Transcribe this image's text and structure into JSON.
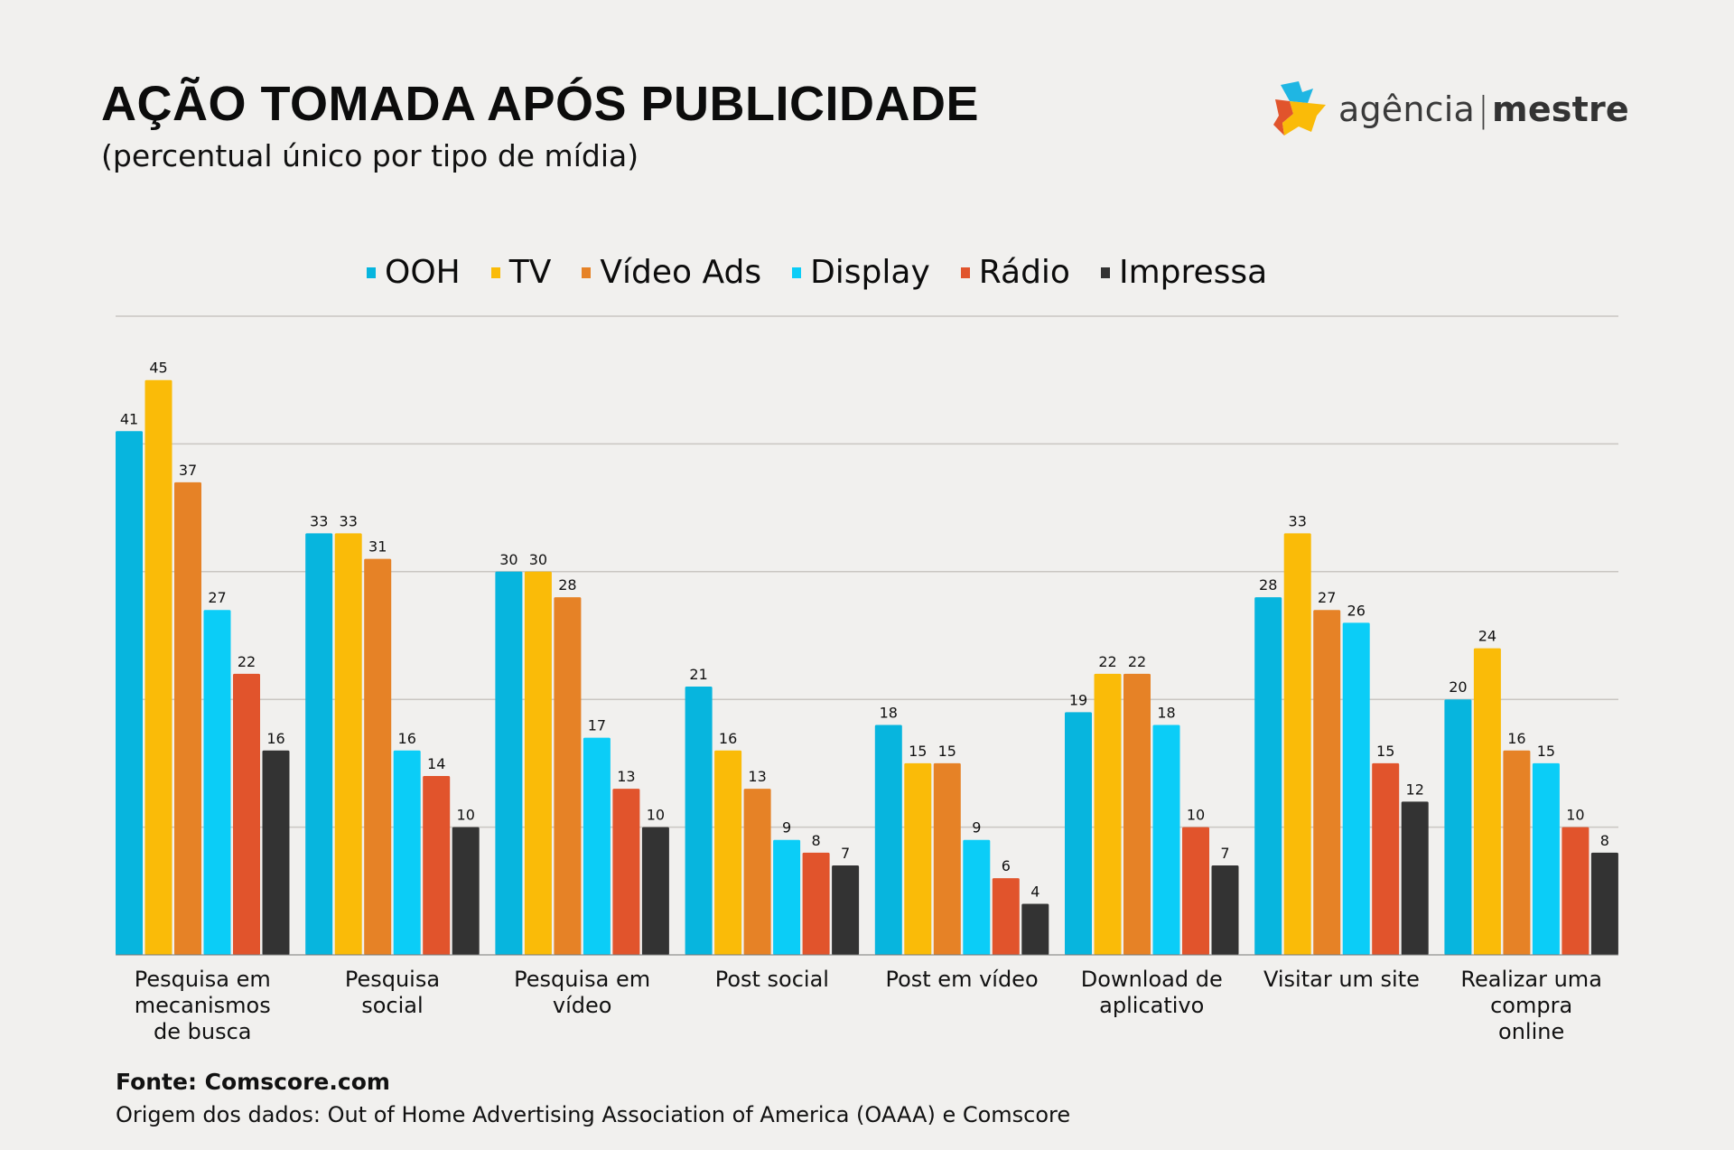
{
  "header": {
    "title": "AÇÃO TOMADA APÓS PUBLICIDADE",
    "subtitle": "(percentual único por tipo de mídia)"
  },
  "logo": {
    "text_light": "agência",
    "separator": "|",
    "text_bold": "mestre",
    "colors": [
      "#1fb6e3",
      "#e1542c",
      "#fabb08"
    ]
  },
  "footer": {
    "source": "Fonte: Comscore.com",
    "origin": "Origem dos dados: Out of Home Advertising Association of America (OAAA) e Comscore"
  },
  "chart_data": {
    "type": "bar",
    "title": "AÇÃO TOMADA APÓS PUBLICIDADE",
    "subtitle": "(percentual único por tipo de mídia)",
    "xlabel": "",
    "ylabel": "",
    "ylim": [
      0,
      50
    ],
    "gridlines": [
      10,
      20,
      30,
      40,
      50
    ],
    "grid": true,
    "legend_position": "top-center",
    "categories": [
      [
        "Pesquisa em",
        "mecanismos",
        "de busca"
      ],
      [
        "Pesquisa",
        "social"
      ],
      [
        "Pesquisa em",
        "vídeo"
      ],
      [
        "Post social"
      ],
      [
        "Post em vídeo"
      ],
      [
        "Download de",
        "aplicativo"
      ],
      [
        "Visitar um site"
      ],
      [
        "Realizar uma",
        "compra",
        "online"
      ]
    ],
    "series": [
      {
        "name": "OOH",
        "color": "#07b5de",
        "values": [
          41,
          33,
          30,
          21,
          18,
          19,
          28,
          20
        ]
      },
      {
        "name": "TV",
        "color": "#fabb08",
        "values": [
          45,
          33,
          30,
          16,
          15,
          22,
          33,
          24
        ]
      },
      {
        "name": "Vídeo Ads",
        "color": "#e68226",
        "values": [
          37,
          31,
          28,
          13,
          15,
          22,
          27,
          16
        ]
      },
      {
        "name": "Display",
        "color": "#0bcdf7",
        "values": [
          27,
          16,
          17,
          9,
          9,
          18,
          26,
          15
        ]
      },
      {
        "name": "Rádio",
        "color": "#e1542c",
        "values": [
          22,
          14,
          13,
          8,
          6,
          10,
          15,
          10
        ]
      },
      {
        "name": "Impressa",
        "color": "#333333",
        "values": [
          16,
          10,
          10,
          7,
          4,
          7,
          12,
          8
        ]
      }
    ]
  }
}
